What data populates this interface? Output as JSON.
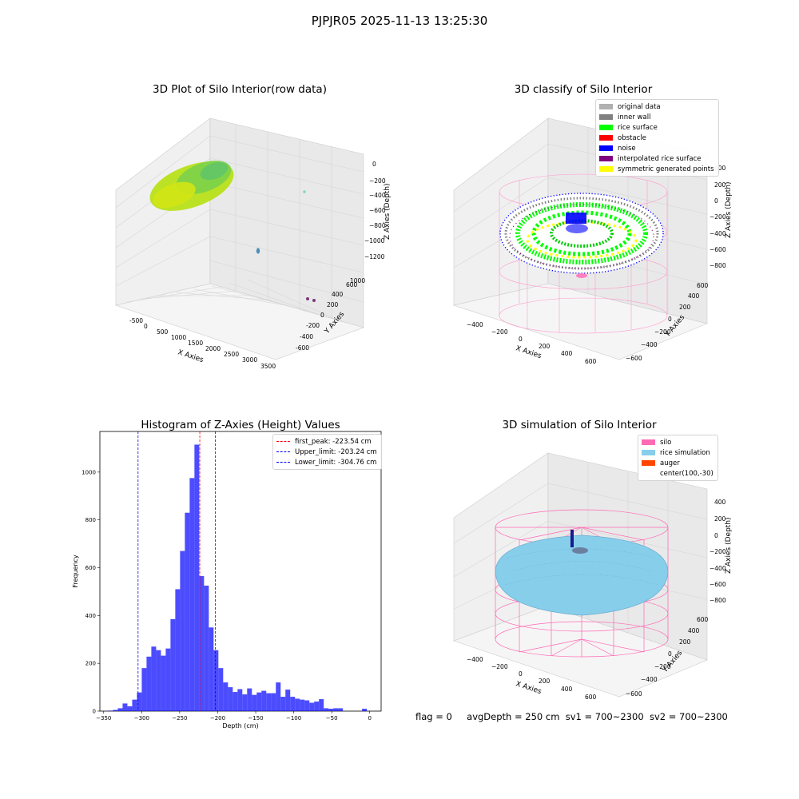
{
  "suptitle": "PJPJR05 2025-11-13 13:25:30",
  "panels": {
    "raw": {
      "title": "3D Plot of Silo Interior(row data)",
      "xlabel": "X Axies",
      "ylabel": "Y Axies",
      "zlabel": "Z Axies (Depth)",
      "xticks": [
        "-500",
        "0",
        "500",
        "1000",
        "1500",
        "2000",
        "2500",
        "3000",
        "3500"
      ],
      "yticks": [
        "-600",
        "-400",
        "-200",
        "0",
        "200",
        "400",
        "600",
        "800",
        "1000"
      ],
      "zticks": [
        "0",
        "−200",
        "−400",
        "−600",
        "−800",
        "−1000",
        "−1200"
      ]
    },
    "classify": {
      "title": "3D classify of Silo Interior",
      "xlabel": "X Axies",
      "ylabel": "Y Axies",
      "zlabel": "Z Axies (Depth)",
      "xticks": [
        "−400",
        "−200",
        "0",
        "200",
        "400",
        "600"
      ],
      "yticks": [
        "−600",
        "−400",
        "−200",
        "0",
        "200",
        "400",
        "600"
      ],
      "zticks": [
        "400",
        "200",
        "0",
        "−200",
        "−400",
        "−600",
        "−800"
      ],
      "legend": [
        {
          "label": "original data",
          "color": "#b0b0b0"
        },
        {
          "label": "inner wall",
          "color": "#808080"
        },
        {
          "label": "rice surface",
          "color": "#00ff00"
        },
        {
          "label": "obstacle",
          "color": "#ff0000"
        },
        {
          "label": "noise",
          "color": "#0000ff"
        },
        {
          "label": "interpolated rice surface",
          "color": "#800080"
        },
        {
          "label": "symmetric generated points",
          "color": "#ffff00"
        }
      ]
    },
    "sim": {
      "title": "3D simulation of Silo Interior",
      "xlabel": "X Axies",
      "ylabel": "Y Axies",
      "zlabel": "Z Axies (Depth)",
      "xticks": [
        "−400",
        "−200",
        "0",
        "200",
        "400",
        "600"
      ],
      "yticks": [
        "−600",
        "−400",
        "−200",
        "0",
        "200",
        "400",
        "600"
      ],
      "zticks": [
        "400",
        "200",
        "0",
        "−200",
        "−400",
        "−600",
        "−800"
      ],
      "legend": [
        {
          "label": "silo",
          "color": "#ff69b4"
        },
        {
          "label": "rice simulation",
          "color": "#87ceeb"
        },
        {
          "label": "auger",
          "color": "#ff4500"
        },
        {
          "label": "center(100,-30)",
          "color": ""
        }
      ]
    }
  },
  "chart_data": {
    "type": "bar",
    "title": "Histogram of Z-Axies (Height) Values",
    "xlabel": "Depth (cm)",
    "ylabel": "Frequency",
    "xlim": [
      -355,
      15
    ],
    "ylim": [
      0,
      1170
    ],
    "xticks": [
      -350,
      -300,
      -250,
      -200,
      -150,
      -100,
      -50,
      0
    ],
    "yticks": [
      0,
      200,
      400,
      600,
      800,
      1000
    ],
    "bar_color": "#0000ff",
    "bin_width": 6.3,
    "bin_starts": [
      -344,
      -337.7,
      -331.4,
      -325.1,
      -318.8,
      -312.5,
      -306.2,
      -299.9,
      -293.6,
      -287.3,
      -281,
      -274.7,
      -268.4,
      -262.1,
      -255.8,
      -249.5,
      -243.2,
      -236.9,
      -230.6,
      -224.3,
      -218,
      -211.7,
      -205.4,
      -199.1,
      -192.8,
      -186.5,
      -180.2,
      -173.9,
      -167.6,
      -161.3,
      -155,
      -148.7,
      -142.4,
      -136.1,
      -129.8,
      -123.5,
      -117.2,
      -110.9,
      -104.6,
      -98.3,
      -92,
      -85.7,
      -79.4,
      -73.1,
      -66.8,
      -60.5,
      -54.2,
      -47.9,
      -41.6,
      -35.3,
      -29,
      -22.7,
      -16.4,
      -10.1,
      -3.8
    ],
    "values": [
      2,
      5,
      12,
      32,
      20,
      48,
      78,
      180,
      228,
      270,
      255,
      232,
      262,
      385,
      510,
      670,
      830,
      975,
      1115,
      565,
      525,
      350,
      255,
      180,
      120,
      100,
      80,
      92,
      70,
      95,
      68,
      78,
      85,
      75,
      75,
      120,
      60,
      90,
      60,
      52,
      48,
      45,
      35,
      40,
      50,
      12,
      10,
      12,
      12,
      0,
      0,
      0,
      0,
      10,
      0
    ],
    "vlines": [
      {
        "x": -223.54,
        "color": "#ff0000",
        "label": "first_peak: -223.54 cm"
      },
      {
        "x": -203.24,
        "color": "#0000ff",
        "label": "Upper_limit: -203.24 cm"
      },
      {
        "x": -304.76,
        "color": "#0000ff",
        "label": "Lower_limit: -304.76 cm"
      }
    ],
    "legend_position": "upper right"
  },
  "footer": {
    "flag": "flag = 0",
    "avg_depth": "avgDepth = 250 cm",
    "sv1": "sv1 = 700~2300",
    "sv2": "sv2 = 700~2300"
  }
}
